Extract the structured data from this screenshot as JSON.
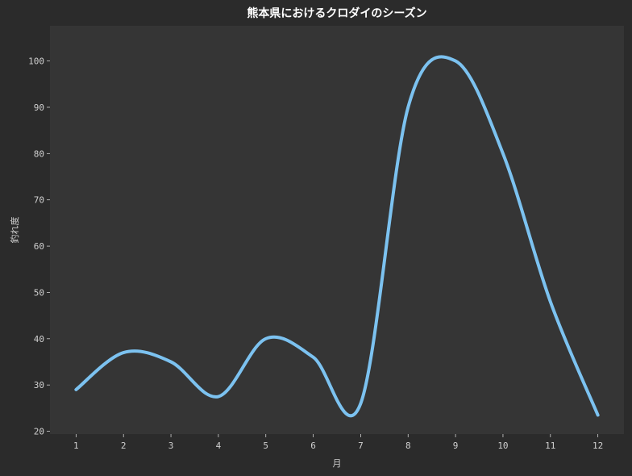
{
  "chart_data": {
    "type": "line",
    "title": "熊本県におけるクロダイのシーズン",
    "xlabel": "月",
    "ylabel": "釣れ度",
    "x": [
      1,
      2,
      3,
      4,
      5,
      6,
      7,
      8,
      9,
      10,
      11,
      12
    ],
    "series": [
      {
        "values": [
          29,
          37,
          35,
          27.5,
          40,
          36,
          26,
          90,
          100,
          80,
          48,
          23.5
        ],
        "color": "#7cc2f0"
      }
    ],
    "xlim": [
      0.45,
      12.55
    ],
    "ylim": [
      19.4,
      107.6
    ],
    "yticks": [
      20,
      30,
      40,
      50,
      60,
      70,
      80,
      90,
      100
    ],
    "xticks": [
      1,
      2,
      3,
      4,
      5,
      6,
      7,
      8,
      9,
      10,
      11,
      12
    ],
    "grid": false,
    "background": "#2b2b2b",
    "plot_background": "#353535",
    "text_color": "#d0d0d0"
  }
}
